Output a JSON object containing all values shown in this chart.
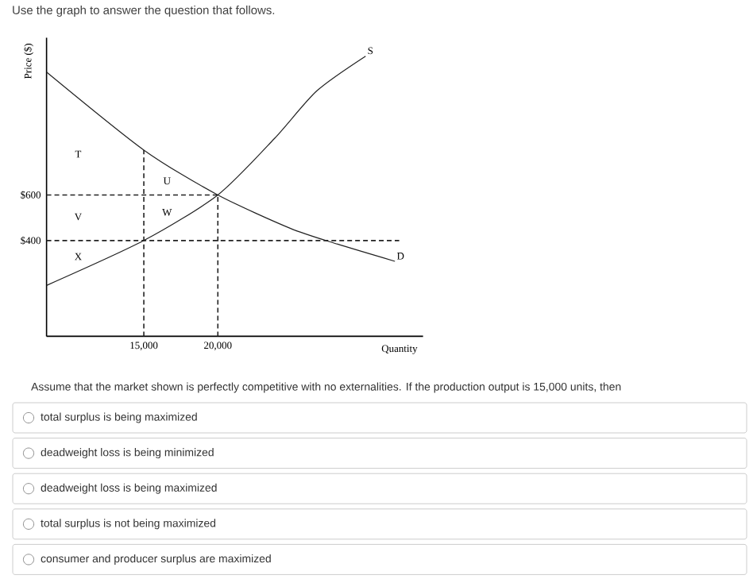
{
  "chart_data": {
    "type": "line",
    "title": "Use the graph to answer the question that follows.",
    "xlabel": "Quantity",
    "ylabel": "Price ($)",
    "xlim": [
      8430,
      33860
    ],
    "ylim": [
      -20,
      1290
    ],
    "xticks": [
      {
        "value": 15000,
        "label": "15,000"
      },
      {
        "value": 20000,
        "label": "20,000"
      }
    ],
    "yticks": [
      {
        "value": 400,
        "label": "$400"
      },
      {
        "value": 600,
        "label": "$600"
      }
    ],
    "line_style": "solid",
    "series": [
      {
        "name": "S",
        "color": "#222222",
        "x": [
          8430,
          15000,
          20000,
          23830,
          26690,
          29980
        ],
        "values": [
          203,
          400,
          600,
          848,
          1057,
          1209
        ]
      },
      {
        "name": "D",
        "color": "#222222",
        "x": [
          8430,
          15000,
          20000,
          24880,
          28100,
          31960
        ],
        "values": [
          1139,
          797,
          600,
          454,
          384,
          309
        ]
      },
      {
        "color": "#222222",
        "line_style": "dashed",
        "x": [
          15000,
          15000
        ],
        "values": [
          -20,
          797
        ]
      },
      {
        "color": "#222222",
        "line_style": "dashed",
        "x": [
          20000,
          20000
        ],
        "values": [
          -20,
          600
        ]
      },
      {
        "color": "#222222",
        "line_style": "dashed",
        "x": [
          8430,
          20000
        ],
        "values": [
          600,
          600
        ]
      },
      {
        "color": "#222222",
        "line_style": "dashed",
        "x": [
          8430,
          32250
        ],
        "values": [
          400,
          400
        ]
      }
    ],
    "annotations": [
      "T",
      "U",
      "W",
      "V",
      "X",
      "Assume that the market shown is perfectly competitive with no externalities. If the production output is 15,000 units, then",
      "total surplus is being maximized",
      "deadweight loss is being minimized",
      "deadweight loss is being maximized",
      "total surplus is not being maximized",
      "consumer and producer surplus are maximized"
    ]
  }
}
